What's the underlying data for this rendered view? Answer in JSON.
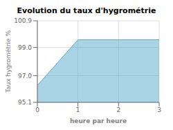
{
  "chart_data": {
    "type": "area",
    "title": "Evolution du taux d'hygrométrie",
    "xlabel": "heure par heure",
    "ylabel": "Taux hygrométrie %",
    "x": [
      0,
      1,
      2,
      3
    ],
    "values": [
      96.3,
      99.55,
      99.55,
      99.55
    ],
    "color": "#55aacc",
    "xlim": [
      0,
      3
    ],
    "xticks": [
      0,
      1,
      2,
      3
    ],
    "ylim": [
      95.1,
      100.9
    ],
    "yticks": [
      95.1,
      {
        "value": 97,
        "label": "97.0"
      },
      {
        "value": 99,
        "label": "99.0"
      },
      100.9
    ],
    "grid": true
  }
}
